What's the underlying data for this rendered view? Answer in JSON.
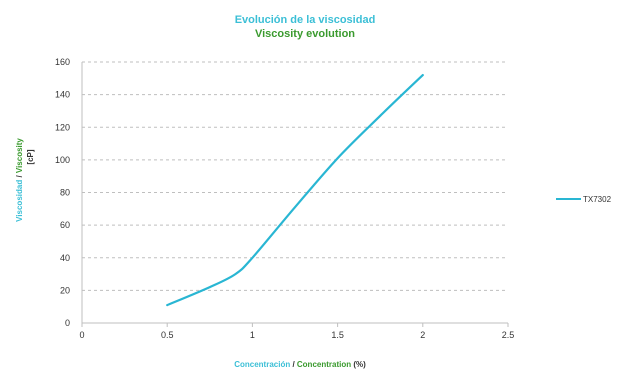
{
  "colors": {
    "spanish_text": "#3bbfd6",
    "english_text": "#3a9a2e",
    "series_line": "#29b6d3",
    "axis": "#bfbfbf",
    "grid": "#bfbfbf",
    "tick_text": "#333333"
  },
  "chart_data": {
    "type": "line",
    "title": "Evolución de la  viscosidad",
    "subtitle": "Viscosity evolution",
    "ylabel": {
      "es": "Viscosidad",
      "separator": " / ",
      "en": "Viscosity",
      "unit": "[cP]"
    },
    "xlabel": {
      "es": "Concentración",
      "separator": "  /  ",
      "en": "Concentration",
      "unit": " (%)"
    },
    "xlim": [
      0,
      2.5
    ],
    "ylim": [
      0,
      160
    ],
    "xticks": [
      0,
      0.5,
      1,
      1.5,
      2,
      2.5
    ],
    "yticks": [
      0,
      20,
      40,
      60,
      80,
      100,
      120,
      140,
      160
    ],
    "grid": "horizontal-dashed",
    "legend_position": "right",
    "series": [
      {
        "name": "TX7302",
        "x": [
          0.5,
          0.75,
          0.9,
          1,
          1.25,
          1.5,
          1.75,
          2
        ],
        "y": [
          11,
          22,
          30,
          40,
          71,
          101,
          127,
          152
        ]
      }
    ]
  }
}
